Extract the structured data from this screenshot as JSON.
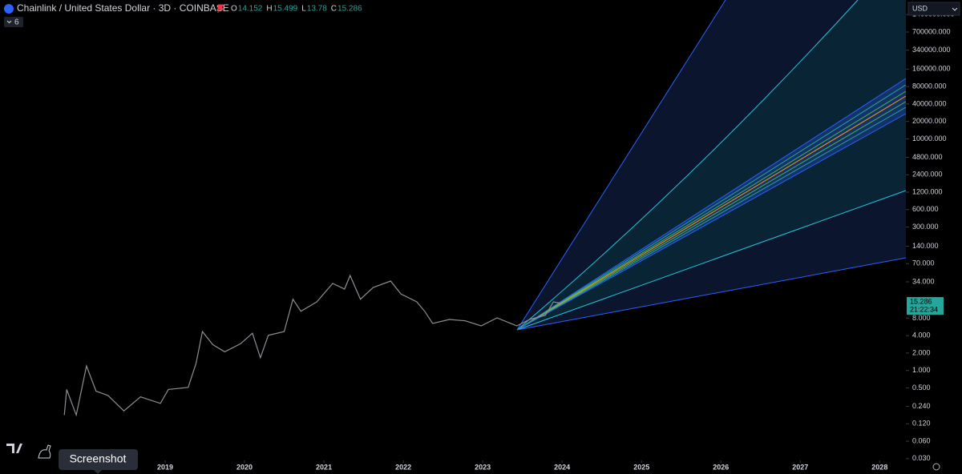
{
  "header": {
    "symbol": "Chainlink / United States Dollar · 3D · COINBASE",
    "ohlc": [
      {
        "key": "O",
        "value": 14.152
      },
      {
        "key": "H",
        "value": 15.499
      },
      {
        "key": "L",
        "value": 13.78
      },
      {
        "key": "C",
        "value": 15.286
      }
    ],
    "indicators": "6",
    "currency": "USD"
  },
  "ui": {
    "tooltip": "Screenshot",
    "last_price": 15.286,
    "last_time": "21:22:34"
  },
  "chart_data": {
    "type": "line",
    "log_y": true,
    "color": "#8c8f96",
    "x": [
      2017.73,
      2017.76,
      2017.88,
      2018.01,
      2018.13,
      2018.28,
      2018.48,
      2018.69,
      2018.94,
      2019.04,
      2019.29,
      2019.39,
      2019.47,
      2019.6,
      2019.75,
      2019.95,
      2020.1,
      2020.2,
      2020.3,
      2020.5,
      2020.61,
      2020.71,
      2020.91,
      2021.11,
      2021.26,
      2021.33,
      2021.46,
      2021.62,
      2021.84,
      2021.97,
      2022.17,
      2022.27,
      2022.37,
      2022.58,
      2022.78,
      2022.98,
      2023.18,
      2023.43,
      2023.59,
      2023.79,
      2023.89,
      2023.99
    ],
    "values": [
      0.17,
      0.47,
      0.17,
      1.2,
      0.44,
      0.37,
      0.2,
      0.35,
      0.27,
      0.47,
      0.51,
      1.33,
      4.7,
      2.8,
      2.1,
      2.9,
      4.4,
      1.66,
      4.05,
      4.7,
      17,
      10.5,
      15.3,
      31.8,
      25.5,
      43.6,
      17,
      27.2,
      35,
      21,
      15.3,
      10.5,
      6.5,
      7.6,
      7.2,
      5.9,
      8.1,
      5.9,
      7.6,
      9,
      15.3,
      14.4
    ],
    "xlim": [
      2016.92,
      2028.33
    ],
    "xticks": [
      2019,
      2020,
      2021,
      2022,
      2023,
      2024,
      2025,
      2026,
      2027,
      2028
    ],
    "ylim": [
      0.028,
      2500000
    ],
    "yticks": [
      {
        "value": 1400000,
        "label": "1400000.000"
      },
      {
        "value": 700000,
        "label": "700000.000"
      },
      {
        "value": 340000,
        "label": "340000.000"
      },
      {
        "value": 160000,
        "label": "160000.000"
      },
      {
        "value": 80000,
        "label": "80000.000"
      },
      {
        "value": 40000,
        "label": "40000.000"
      },
      {
        "value": 20000,
        "label": "20000.000"
      },
      {
        "value": 10000,
        "label": "10000.000"
      },
      {
        "value": 4800,
        "label": "4800.000"
      },
      {
        "value": 2400,
        "label": "2400.000"
      },
      {
        "value": 1200,
        "label": "1200.000"
      },
      {
        "value": 600,
        "label": "600.000"
      },
      {
        "value": 300,
        "label": "300.000"
      },
      {
        "value": 140,
        "label": "140.000"
      },
      {
        "value": 70,
        "label": "70.000"
      },
      {
        "value": 34,
        "label": "34.000"
      },
      {
        "value": 8,
        "label": "8.000"
      },
      {
        "value": 4,
        "label": "4.000"
      },
      {
        "value": 2,
        "label": "2.000"
      },
      {
        "value": 1,
        "label": "1.000"
      },
      {
        "value": 0.5,
        "label": "0.500"
      },
      {
        "value": 0.24,
        "label": "0.240"
      },
      {
        "value": 0.12,
        "label": "0.120"
      },
      {
        "value": 0.06,
        "label": "0.060"
      },
      {
        "value": 0.03,
        "label": "0.030"
      }
    ]
  }
}
